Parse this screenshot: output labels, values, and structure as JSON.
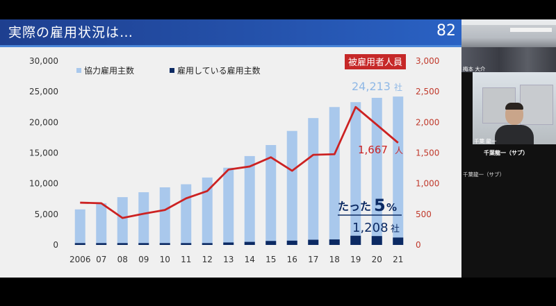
{
  "slide": {
    "title": "実際の雇用状況は…",
    "page_number": "82",
    "header_color": "#2553ad"
  },
  "chart_data": {
    "type": "bar",
    "categories": [
      "2006",
      "07",
      "08",
      "09",
      "10",
      "11",
      "12",
      "13",
      "14",
      "15",
      "16",
      "17",
      "18",
      "19",
      "20",
      "21"
    ],
    "series": [
      {
        "name": "協力雇用主数",
        "color": "#a9c8ec",
        "axis": "left",
        "values": [
          5800,
          6800,
          7800,
          8600,
          9400,
          9900,
          11000,
          12600,
          14500,
          16300,
          18600,
          20700,
          22500,
          23300,
          24000,
          24213
        ]
      },
      {
        "name": "雇用している雇用主数",
        "color": "#0c2a63",
        "axis": "left",
        "values": [
          300,
          300,
          300,
          300,
          300,
          300,
          300,
          400,
          500,
          650,
          700,
          850,
          900,
          1500,
          1450,
          1208
        ]
      },
      {
        "name": "被雇用者人員",
        "type": "line",
        "color": "#cc2222",
        "axis": "right",
        "values": [
          690,
          680,
          440,
          510,
          570,
          760,
          880,
          1230,
          1280,
          1430,
          1210,
          1470,
          1480,
          2250,
          1960,
          1667
        ]
      }
    ],
    "ylim_left": [
      0,
      30000
    ],
    "yticks_left": [
      "30,000",
      "25,000",
      "20,000",
      "15,000",
      "10,000",
      "5,000",
      "0"
    ],
    "ylim_right": [
      0,
      3000
    ],
    "yticks_right": [
      "3,000",
      "2,500",
      "2,000",
      "1,500",
      "1,000",
      "500",
      "0"
    ],
    "legend": "top-left",
    "right_axis_label": "被雇用者人員",
    "annotations": {
      "bar_total_value": "24,213",
      "bar_total_unit": "社",
      "line_value": "1,667",
      "line_unit": "人",
      "share_label": "たった",
      "share_percent": "5",
      "share_sign": "%",
      "employed_value": "1,208",
      "employed_unit": "社"
    }
  },
  "participants": [
    {
      "label": "梅本 大介",
      "caption": ""
    },
    {
      "label": "千葉 龍一",
      "caption": "千葉龍一（サブ）",
      "name": "千葉龍一（サブ）"
    }
  ]
}
